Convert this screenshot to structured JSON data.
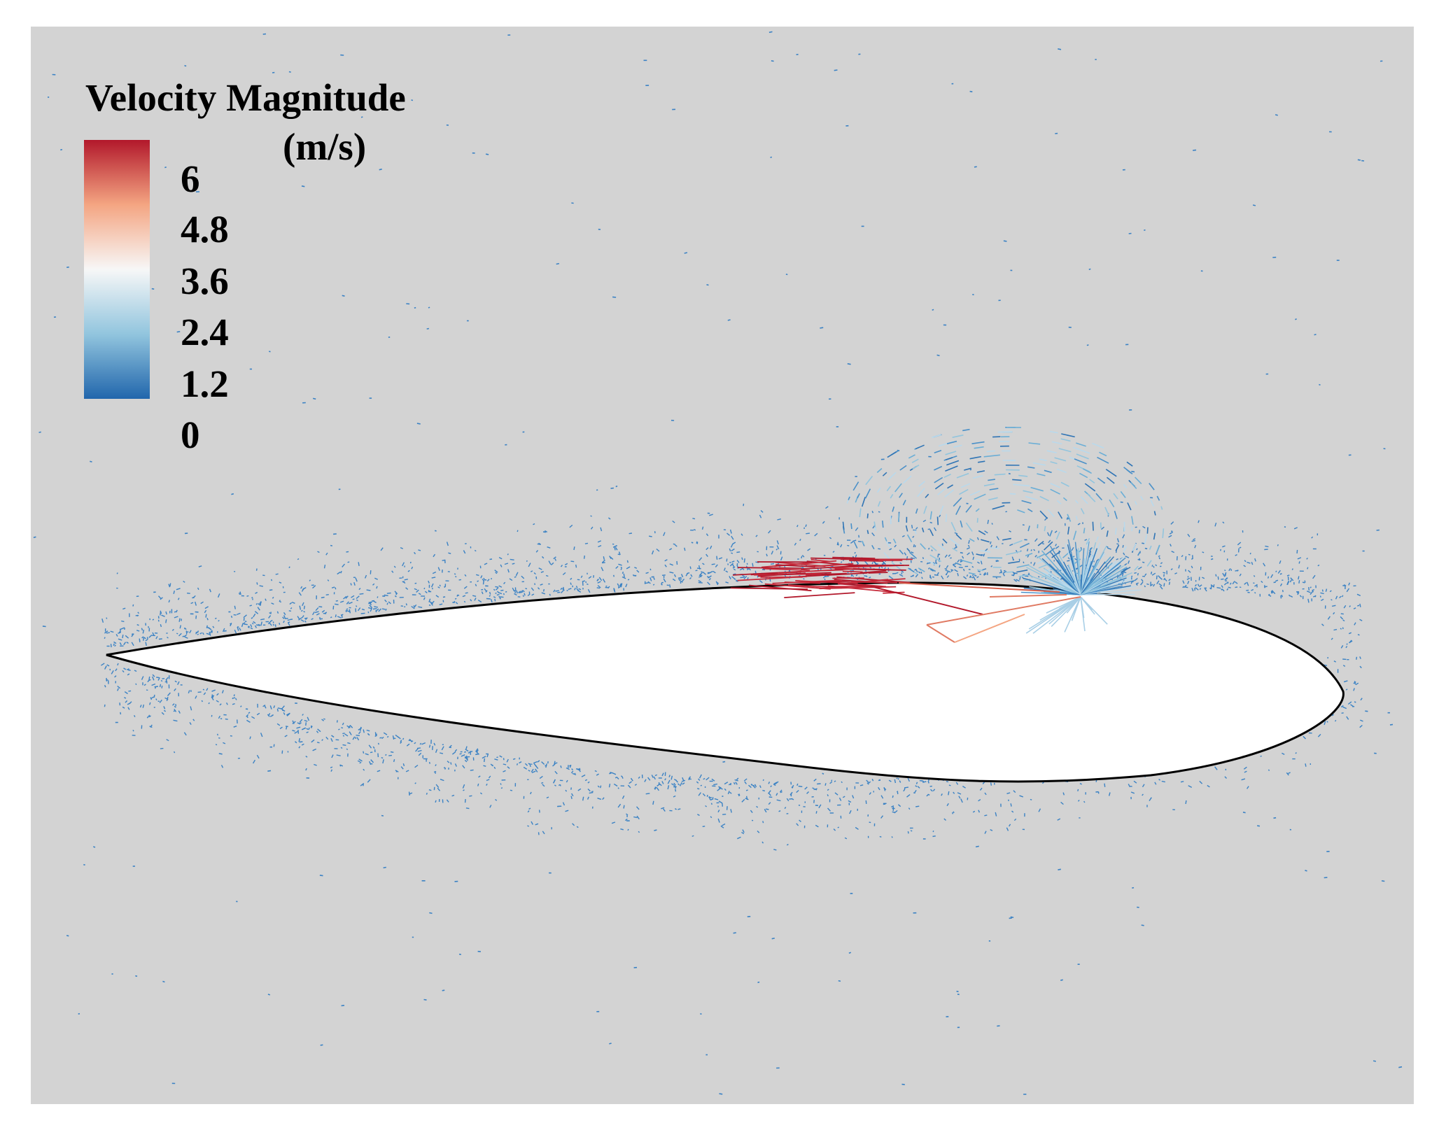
{
  "legend": {
    "title": "Velocity Magnitude",
    "unit": "(m/s)",
    "ticks": [
      "6",
      "4.8",
      "3.6",
      "2.4",
      "1.2",
      "0"
    ],
    "range": [
      0,
      6
    ],
    "colors": {
      "low": "#2166ac",
      "mid_low": "#92c5de",
      "mid": "#f7f7f7",
      "mid_high": "#f4a582",
      "high": "#b2182b"
    }
  },
  "figure": {
    "background": "#d3d3d3",
    "body_fill": "#ffffff",
    "body_outline": "#000000",
    "vector_low_color": "#3b82c4"
  }
}
